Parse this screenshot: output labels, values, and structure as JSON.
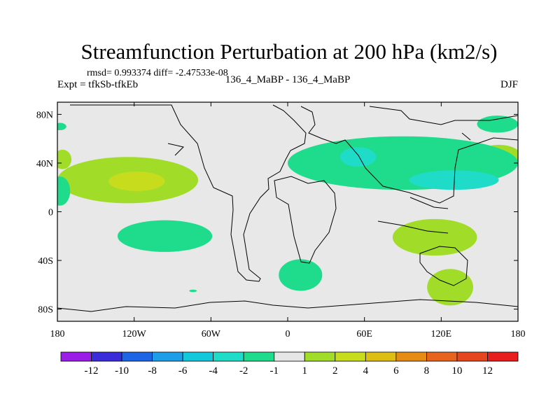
{
  "chart_data": {
    "type": "heatmap",
    "title": "Streamfunction Perturbation at 200 hPa (km2/s)",
    "stats_line": "rmsd= 0.993374 diff= -2.47533e-08",
    "left_subtitle": "Expt = tfkSb-tfkEb",
    "center_subtitle": "136_4_MaBP - 136_4_MaBP",
    "right_subtitle": "DJF",
    "projection": "cylindrical equidistant",
    "xlim": [
      -180,
      180
    ],
    "ylim": [
      -90,
      90
    ],
    "x_ticks": [
      {
        "value": -180,
        "label": "180"
      },
      {
        "value": -120,
        "label": "120W"
      },
      {
        "value": -60,
        "label": "60W"
      },
      {
        "value": 0,
        "label": "0"
      },
      {
        "value": 60,
        "label": "60E"
      },
      {
        "value": 120,
        "label": "120E"
      },
      {
        "value": 180,
        "label": "180"
      }
    ],
    "y_ticks": [
      {
        "value": 80,
        "label": "80N"
      },
      {
        "value": 40,
        "label": "40N"
      },
      {
        "value": 0,
        "label": "0"
      },
      {
        "value": -40,
        "label": "40S"
      },
      {
        "value": -80,
        "label": "80S"
      }
    ],
    "colorbar": {
      "labels": [
        "-12",
        "-10",
        "-8",
        "-6",
        "-4",
        "-2",
        "-1",
        "1",
        "2",
        "4",
        "6",
        "8",
        "10",
        "12"
      ],
      "colors": [
        "#9a1ee6",
        "#3a2cd8",
        "#1c66e6",
        "#1e9ee6",
        "#14c8dc",
        "#1edcc8",
        "#1edc8c",
        "#e6e6e6",
        "#a0dc28",
        "#c8dc1e",
        "#dcbe14",
        "#e68c14",
        "#e6641e",
        "#e6461e",
        "#e61e1e"
      ]
    },
    "shaded_regions": [
      {
        "name": "mid-pacific-positive",
        "level": "1",
        "center_lon": -125,
        "center_lat": 26,
        "lon_halfwidth": 55,
        "lat_halfwidth": 19
      },
      {
        "name": "mid-pacific-positive-core",
        "level": "2",
        "center_lon": -118,
        "center_lat": 25,
        "lon_halfwidth": 22,
        "lat_halfwidth": 8
      },
      {
        "name": "dateline-west-positive",
        "level": "1",
        "center_lon": -176,
        "center_lat": 43,
        "lon_halfwidth": 7,
        "lat_halfwidth": 8
      },
      {
        "name": "west-pacific-positive",
        "level": "1",
        "center_lon": 165,
        "center_lat": 45,
        "lon_halfwidth": 18,
        "lat_halfwidth": 10
      },
      {
        "name": "west-pacific-positive-core",
        "level": "2",
        "center_lon": 168,
        "center_lat": 45,
        "lon_halfwidth": 6,
        "lat_halfwidth": 4
      },
      {
        "name": "south-indian-positive",
        "level": "1",
        "center_lon": 115,
        "center_lat": -21,
        "lon_halfwidth": 33,
        "lat_halfwidth": 15
      },
      {
        "name": "southern-ocean-positive",
        "level": "1",
        "center_lon": 127,
        "center_lat": -62,
        "lon_halfwidth": 18,
        "lat_halfwidth": 15
      },
      {
        "name": "asia-negative",
        "level": "-1",
        "center_lon": 90,
        "center_lat": 40,
        "lon_halfwidth": 90,
        "lat_halfwidth": 22
      },
      {
        "name": "asia-negative-core",
        "level": "-2",
        "center_lon": 55,
        "center_lat": 45,
        "lon_halfwidth": 14,
        "lat_halfwidth": 8
      },
      {
        "name": "north-pacific-negative-core",
        "level": "-2",
        "center_lon": 130,
        "center_lat": 26,
        "lon_halfwidth": 35,
        "lat_halfwidth": 8
      },
      {
        "name": "south-pacific-negative",
        "level": "-1",
        "center_lon": -96,
        "center_lat": -20,
        "lon_halfwidth": 37,
        "lat_halfwidth": 13
      },
      {
        "name": "south-atlantic-negative",
        "level": "-1",
        "center_lon": 10,
        "center_lat": -52,
        "lon_halfwidth": 17,
        "lat_halfwidth": 13
      },
      {
        "name": "east-pacific-negative",
        "level": "-1",
        "center_lon": -178,
        "center_lat": 17,
        "lon_halfwidth": 8,
        "lat_halfwidth": 12
      },
      {
        "name": "arctic-east-negative",
        "level": "-1",
        "center_lon": 164,
        "center_lat": 72,
        "lon_halfwidth": 16,
        "lat_halfwidth": 7
      },
      {
        "name": "arctic-west-negative",
        "level": "-1",
        "center_lon": -178,
        "center_lat": 70,
        "lon_halfwidth": 5,
        "lat_halfwidth": 3
      },
      {
        "name": "small-south-pacific-negative",
        "level": "-1",
        "center_lon": -74,
        "center_lat": -65,
        "lon_halfwidth": 3,
        "lat_halfwidth": 1
      }
    ]
  }
}
